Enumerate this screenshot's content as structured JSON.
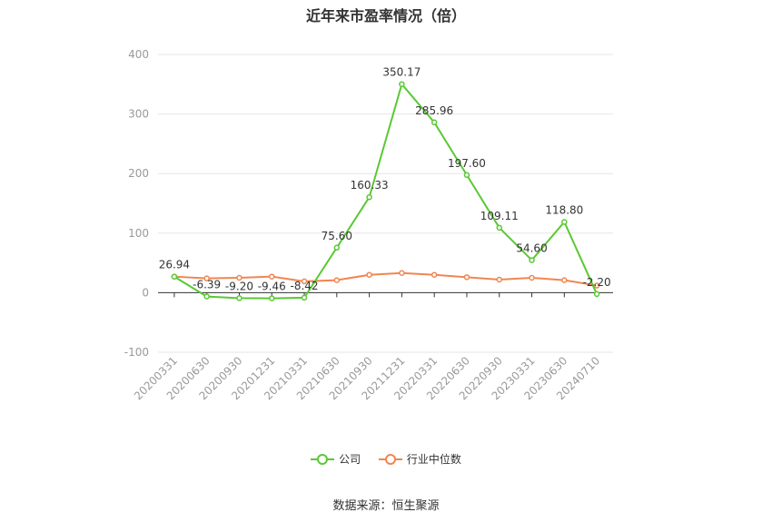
{
  "chart_data": {
    "type": "line",
    "title": "近年来市盈率情况（倍）",
    "categories": [
      "20200331",
      "20200630",
      "20200930",
      "20201231",
      "20210331",
      "20210630",
      "20210930",
      "20211231",
      "20220331",
      "20220630",
      "20220930",
      "20230331",
      "20230630",
      "20240710"
    ],
    "series": [
      {
        "name": "公司",
        "color": "#5ac834",
        "values": [
          26.94,
          -6.39,
          -9.2,
          -9.46,
          -8.42,
          75.6,
          160.33,
          350.17,
          285.96,
          197.6,
          109.11,
          54.6,
          118.8,
          -2.2
        ],
        "labels": [
          "26.94",
          "-6.39",
          "-9.20",
          "-9.46",
          "-8.42",
          "75.60",
          "160.33",
          "350.17",
          "285.96",
          "197.60",
          "109.11",
          "54.60",
          "118.80",
          "-2.20"
        ]
      },
      {
        "name": "行业中位数",
        "color": "#f08650",
        "values": [
          27,
          24,
          25,
          27,
          19,
          21,
          30,
          33,
          30,
          26,
          22,
          25,
          21,
          12
        ]
      }
    ],
    "yticks": [
      400,
      300,
      200,
      100,
      0,
      -100
    ],
    "ylim": [
      -100,
      400
    ],
    "grid": true,
    "legend": "bottom"
  },
  "source": "数据来源：恒生聚源"
}
